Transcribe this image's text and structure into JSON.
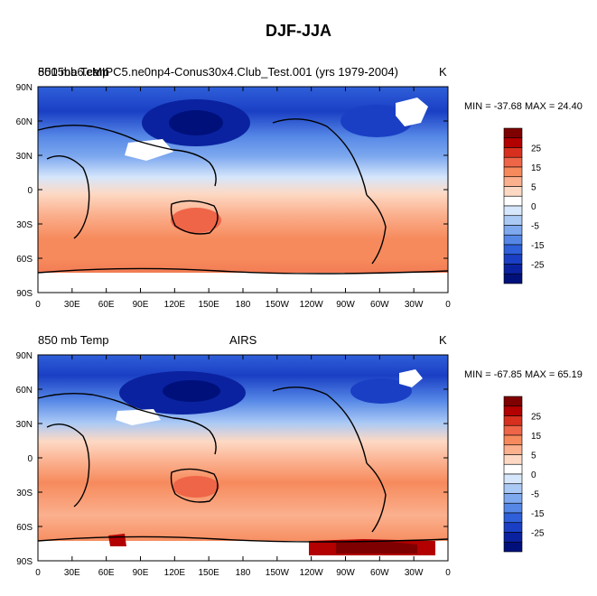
{
  "title": "DJF-JJA",
  "panels": [
    {
      "left_label_a": "850 mb Temp",
      "left_label_b": "5015ba6.cam",
      "center_label": "MIPC5.ne0np4-Conus30x4.Club_Test.001 (yrs 1979-2004)",
      "units": "K",
      "minmax": "MIN = -37.68 MAX =  24.40"
    },
    {
      "left_label_a": "850 mb Temp",
      "center_label": "AIRS",
      "units": "K",
      "minmax": "MIN = -67.85 MAX =  65.19"
    }
  ],
  "axes": {
    "lat_ticks": [
      "90N",
      "60N",
      "30N",
      "0",
      "30S",
      "60S",
      "90S"
    ],
    "lon_ticks": [
      "0",
      "30E",
      "60E",
      "90E",
      "120E",
      "150E",
      "180",
      "150W",
      "120W",
      "90W",
      "60W",
      "30W",
      "0"
    ]
  },
  "colorbar": {
    "labels": [
      "25",
      "15",
      "5",
      "0",
      "-5",
      "-15",
      "-25"
    ],
    "colors": [
      "#7f0000",
      "#b30000",
      "#d7301f",
      "#ef6548",
      "#f68a5c",
      "#fbb08e",
      "#fdd9c4",
      "#ffffff",
      "#d6e6fb",
      "#aac9f5",
      "#7ea9ef",
      "#5587e6",
      "#2f5fd9",
      "#1a3fc4",
      "#0a22a0",
      "#00107a"
    ]
  }
}
